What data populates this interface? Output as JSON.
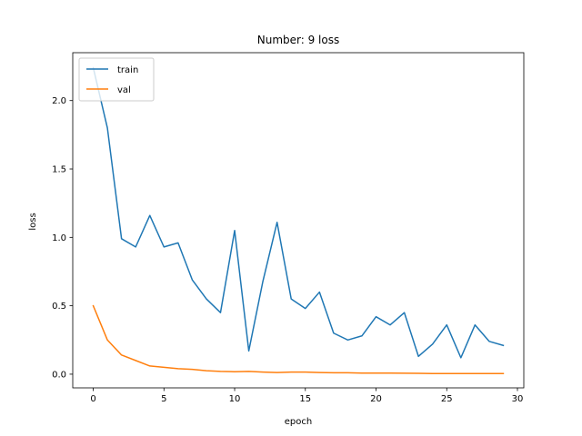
{
  "chart_data": {
    "type": "line",
    "title": "Number: 9 loss",
    "xlabel": "epoch",
    "ylabel": "loss",
    "xlim": [
      -1.45,
      30.45
    ],
    "ylim": [
      -0.1,
      2.35
    ],
    "xticks": [
      0,
      5,
      10,
      15,
      20,
      25,
      30
    ],
    "xtick_labels": [
      "0",
      "5",
      "10",
      "15",
      "20",
      "25",
      "30"
    ],
    "yticks": [
      0.0,
      0.5,
      1.0,
      1.5,
      2.0
    ],
    "ytick_labels": [
      "0.0",
      "0.5",
      "1.0",
      "1.5",
      "2.0"
    ],
    "grid": false,
    "legend_position": "top-left",
    "x": [
      0,
      1,
      2,
      3,
      4,
      5,
      6,
      7,
      8,
      9,
      10,
      11,
      12,
      13,
      14,
      15,
      16,
      17,
      18,
      19,
      20,
      21,
      22,
      23,
      24,
      25,
      26,
      27,
      28,
      29
    ],
    "series": [
      {
        "name": "train",
        "color": "#1f77b4",
        "values": [
          2.24,
          1.8,
          0.99,
          0.93,
          1.16,
          0.93,
          0.96,
          0.69,
          0.55,
          0.45,
          1.05,
          0.17,
          0.68,
          1.11,
          0.55,
          0.48,
          0.6,
          0.3,
          0.25,
          0.28,
          0.42,
          0.36,
          0.45,
          0.13,
          0.22,
          0.36,
          0.12,
          0.36,
          0.24,
          0.21
        ]
      },
      {
        "name": "val",
        "color": "#ff7f0e",
        "values": [
          0.5,
          0.25,
          0.14,
          0.1,
          0.06,
          0.05,
          0.04,
          0.035,
          0.025,
          0.02,
          0.018,
          0.02,
          0.015,
          0.012,
          0.015,
          0.015,
          0.012,
          0.01,
          0.01,
          0.008,
          0.008,
          0.008,
          0.007,
          0.006,
          0.005,
          0.005,
          0.005,
          0.005,
          0.005,
          0.005
        ]
      }
    ]
  }
}
